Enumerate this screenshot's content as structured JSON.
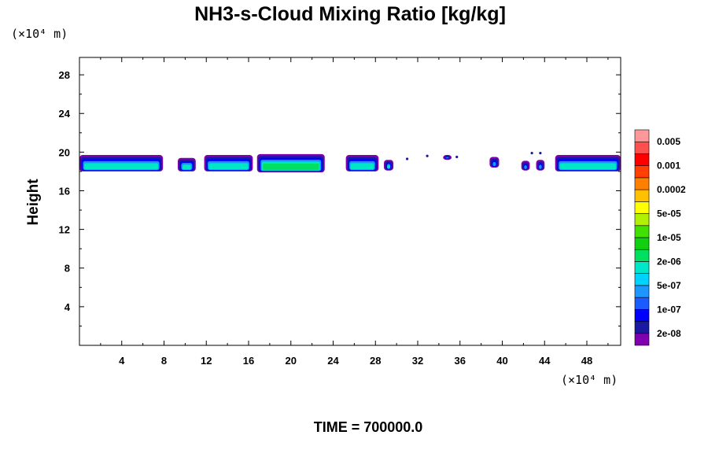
{
  "chart_data": {
    "type": "heatmap",
    "title": "NH3-s-Cloud Mixing Ratio [kg/kg]",
    "ylabel": "Height",
    "x_unit_label": "(×10⁴ m)",
    "y_unit_label": "(×10⁴ m)",
    "x_range": [
      0,
      51.2
    ],
    "y_range": [
      0,
      29.8
    ],
    "x_ticks": [
      4,
      8,
      12,
      16,
      20,
      24,
      28,
      32,
      36,
      40,
      44,
      48
    ],
    "y_ticks": [
      4,
      8,
      12,
      16,
      20,
      24,
      28
    ],
    "time_label": "TIME = 700000.0",
    "colorbar": {
      "levels": [
        "2e-08",
        "1e-07",
        "5e-07",
        "2e-06",
        "1e-05",
        "5e-05",
        "0.0002",
        "0.001",
        "0.005"
      ],
      "colors": [
        "#8000b0",
        "#1a1aa0",
        "#0000ff",
        "#1a5cff",
        "#1e96ff",
        "#00d2ff",
        "#00e6c8",
        "#00e060",
        "#10d010",
        "#40e000",
        "#b0f000",
        "#ffff00",
        "#ffc000",
        "#ff8000",
        "#ff4000",
        "#ff0000",
        "#ff5050",
        "#ff9898"
      ]
    },
    "cloud_segments": [
      {
        "x0": 0.0,
        "x1": 7.9,
        "y_bottom": 18.0,
        "y_top": 19.7,
        "max_level": "2e-06"
      },
      {
        "x0": 9.3,
        "x1": 11.0,
        "y_bottom": 18.0,
        "y_top": 19.4,
        "max_level": "2e-06"
      },
      {
        "x0": 11.8,
        "x1": 16.4,
        "y_bottom": 18.0,
        "y_top": 19.7,
        "max_level": "2e-06"
      },
      {
        "x0": 16.8,
        "x1": 23.2,
        "y_bottom": 17.9,
        "y_top": 19.8,
        "max_level": "1e-05"
      },
      {
        "x0": 25.2,
        "x1": 28.3,
        "y_bottom": 18.0,
        "y_top": 19.7,
        "max_level": "2e-06"
      },
      {
        "x0": 28.8,
        "x1": 29.7,
        "y_bottom": 18.1,
        "y_top": 19.2,
        "max_level": "2e-06"
      },
      {
        "x0": 34.4,
        "x1": 35.2,
        "y_bottom": 19.2,
        "y_top": 19.7,
        "max_level": "5e-07"
      },
      {
        "x0": 38.8,
        "x1": 39.7,
        "y_bottom": 18.4,
        "y_top": 19.5,
        "max_level": "5e-07"
      },
      {
        "x0": 41.8,
        "x1": 42.6,
        "y_bottom": 18.1,
        "y_top": 19.1,
        "max_level": "5e-07"
      },
      {
        "x0": 43.2,
        "x1": 44.0,
        "y_bottom": 18.1,
        "y_top": 19.2,
        "max_level": "5e-07"
      },
      {
        "x0": 45.0,
        "x1": 51.2,
        "y_bottom": 18.0,
        "y_top": 19.7,
        "max_level": "2e-06"
      }
    ],
    "cloud_dots": [
      {
        "x": 31.0,
        "y": 19.3
      },
      {
        "x": 32.9,
        "y": 19.6
      },
      {
        "x": 35.7,
        "y": 19.5
      },
      {
        "x": 42.8,
        "y": 19.9
      },
      {
        "x": 43.6,
        "y": 19.9
      }
    ]
  }
}
